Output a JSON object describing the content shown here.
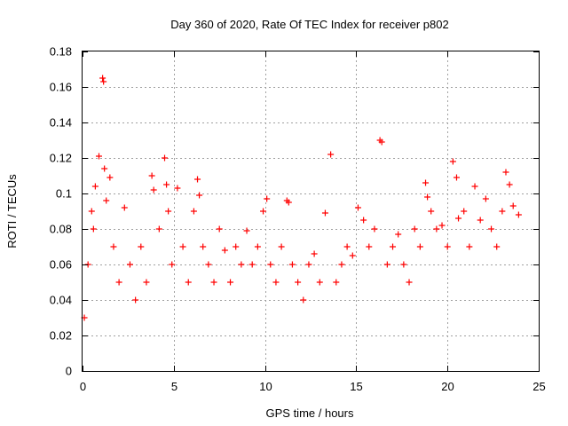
{
  "chart_data": {
    "type": "scatter",
    "title": "Day 360 of 2020, Rate Of TEC Index for receiver p802",
    "xlabel": "GPS time / hours",
    "ylabel": "ROTI / TECUs",
    "xlim": [
      0,
      25
    ],
    "ylim": [
      0,
      0.18
    ],
    "x_ticks": [
      0,
      5,
      10,
      15,
      20,
      25
    ],
    "y_ticks": [
      0,
      0.02,
      0.04,
      0.06,
      0.08,
      0.1,
      0.12,
      0.14,
      0.16,
      0.18
    ],
    "x_tick_labels": [
      "0",
      "5",
      "10",
      "15",
      "20",
      "25"
    ],
    "y_tick_labels": [
      "0",
      "0.02",
      "0.04",
      "0.06",
      "0.08",
      "0.1",
      "0.12",
      "0.14",
      "0.16",
      "0.18"
    ],
    "grid": true,
    "marker": "plus",
    "marker_color": "#ff0000",
    "series": [
      {
        "x": [
          0.1,
          0.3,
          0.5,
          0.7,
          0.6,
          0.9,
          1.1,
          1.15,
          1.2,
          1.3,
          1.5,
          1.7,
          2.0,
          2.3,
          2.6,
          2.9,
          3.2,
          3.5,
          3.8,
          3.9,
          4.2,
          4.5,
          4.6,
          4.7,
          4.9,
          5.2,
          5.5,
          5.8,
          6.1,
          6.3,
          6.4,
          6.6,
          6.9,
          7.2,
          7.5,
          7.8,
          8.1,
          8.4,
          8.7,
          9.0,
          9.3,
          9.6,
          9.9,
          10.1,
          10.3,
          10.6,
          10.9,
          11.2,
          11.3,
          11.5,
          11.8,
          12.1,
          12.4,
          12.7,
          13.0,
          13.3,
          13.6,
          13.9,
          14.2,
          14.5,
          14.8,
          15.1,
          15.4,
          15.7,
          16.0,
          16.3,
          16.4,
          16.7,
          17.0,
          17.3,
          17.6,
          17.9,
          18.2,
          18.5,
          18.8,
          18.9,
          19.1,
          19.4,
          19.7,
          20.0,
          20.3,
          20.5,
          20.6,
          20.9,
          21.2,
          21.5,
          21.8,
          22.1,
          22.4,
          22.7,
          23.0,
          23.2,
          23.4,
          23.6,
          23.9
        ],
        "y": [
          0.03,
          0.06,
          0.09,
          0.104,
          0.08,
          0.121,
          0.165,
          0.163,
          0.114,
          0.096,
          0.109,
          0.07,
          0.05,
          0.092,
          0.06,
          0.04,
          0.07,
          0.05,
          0.11,
          0.102,
          0.08,
          0.12,
          0.105,
          0.09,
          0.06,
          0.103,
          0.07,
          0.05,
          0.09,
          0.108,
          0.099,
          0.07,
          0.06,
          0.05,
          0.08,
          0.068,
          0.05,
          0.07,
          0.06,
          0.079,
          0.06,
          0.07,
          0.09,
          0.097,
          0.06,
          0.05,
          0.07,
          0.096,
          0.095,
          0.06,
          0.05,
          0.04,
          0.06,
          0.066,
          0.05,
          0.089,
          0.122,
          0.05,
          0.06,
          0.07,
          0.065,
          0.092,
          0.085,
          0.07,
          0.08,
          0.13,
          0.129,
          0.06,
          0.07,
          0.077,
          0.06,
          0.05,
          0.08,
          0.07,
          0.106,
          0.098,
          0.09,
          0.08,
          0.082,
          0.07,
          0.118,
          0.109,
          0.086,
          0.09,
          0.07,
          0.104,
          0.085,
          0.097,
          0.08,
          0.07,
          0.09,
          0.112,
          0.105,
          0.093,
          0.088
        ]
      }
    ]
  }
}
